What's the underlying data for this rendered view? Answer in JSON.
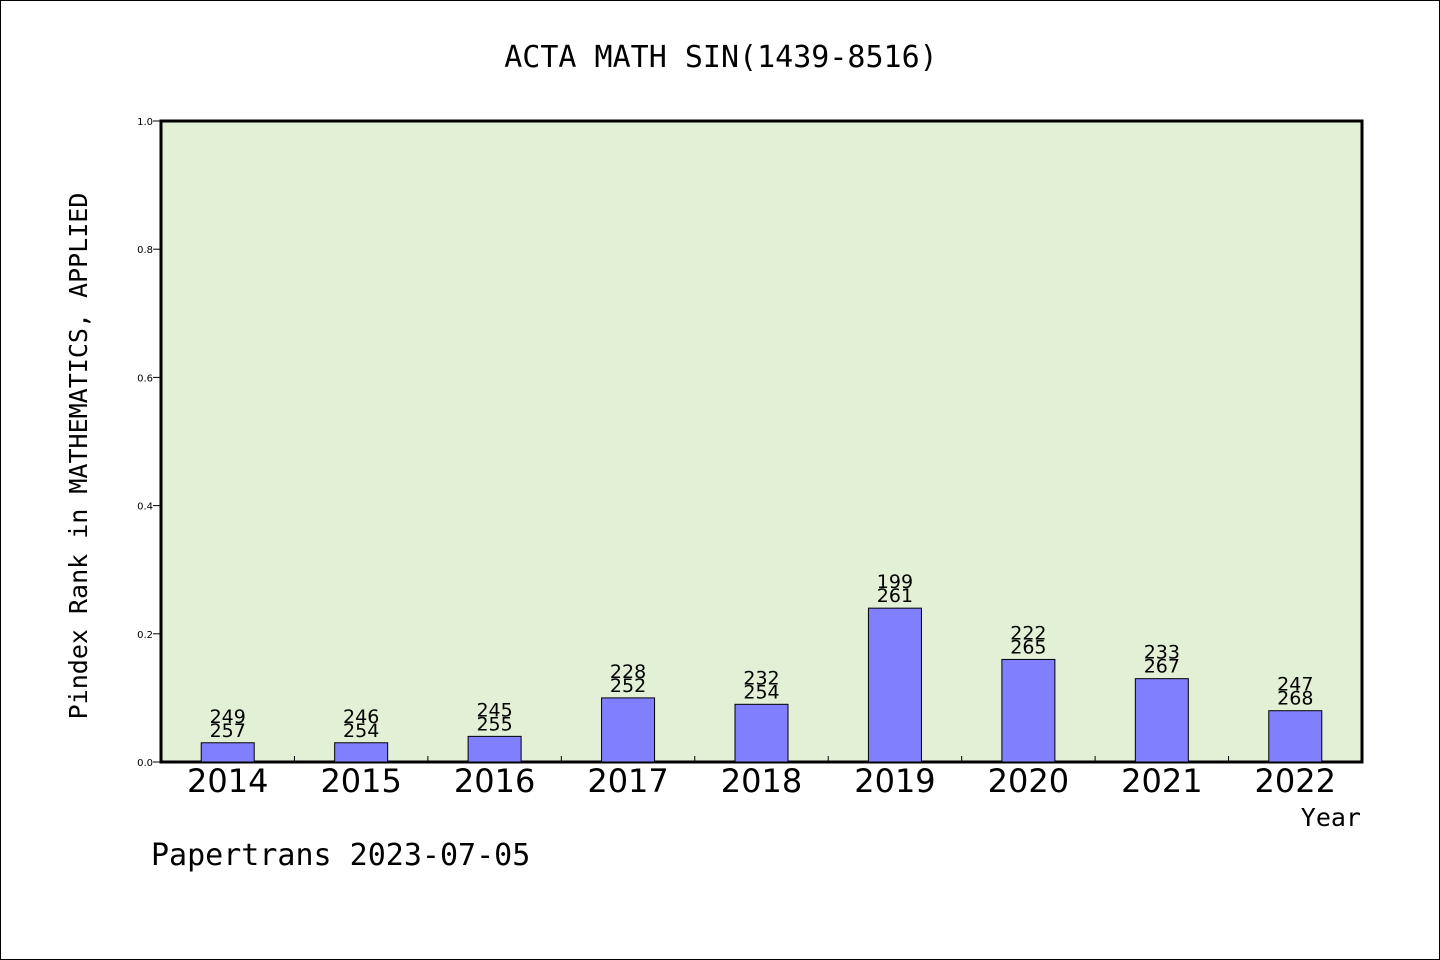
{
  "chart_data": {
    "type": "bar",
    "title": "ACTA MATH SIN(1439-8516)",
    "xlabel": "Year",
    "ylabel": "Pindex Rank in MATHEMATICS, APPLIED",
    "categories": [
      "2014",
      "2015",
      "2016",
      "2017",
      "2018",
      "2019",
      "2020",
      "2021",
      "2022"
    ],
    "values": [
      0.03,
      0.03,
      0.04,
      0.1,
      0.09,
      0.24,
      0.16,
      0.13,
      0.08
    ],
    "labels": [
      {
        "rank": "249",
        "total": "257"
      },
      {
        "rank": "246",
        "total": "254"
      },
      {
        "rank": "245",
        "total": "255"
      },
      {
        "rank": "228",
        "total": "252"
      },
      {
        "rank": "232",
        "total": "254"
      },
      {
        "rank": "199",
        "total": "261"
      },
      {
        "rank": "222",
        "total": "265"
      },
      {
        "rank": "233",
        "total": "267"
      },
      {
        "rank": "247",
        "total": "268"
      }
    ],
    "ylim": [
      0,
      1
    ],
    "yticks": [
      "0.0",
      "0.2",
      "0.4",
      "0.6",
      "0.8",
      "1.0"
    ],
    "grid": false,
    "legend": "none",
    "colors": {
      "plot_background": "#e2f0d6",
      "bar_fill": "#8080ff",
      "bar_stroke": "#000000"
    }
  },
  "footer": {
    "credit": "Papertrans 2023-07-05"
  }
}
